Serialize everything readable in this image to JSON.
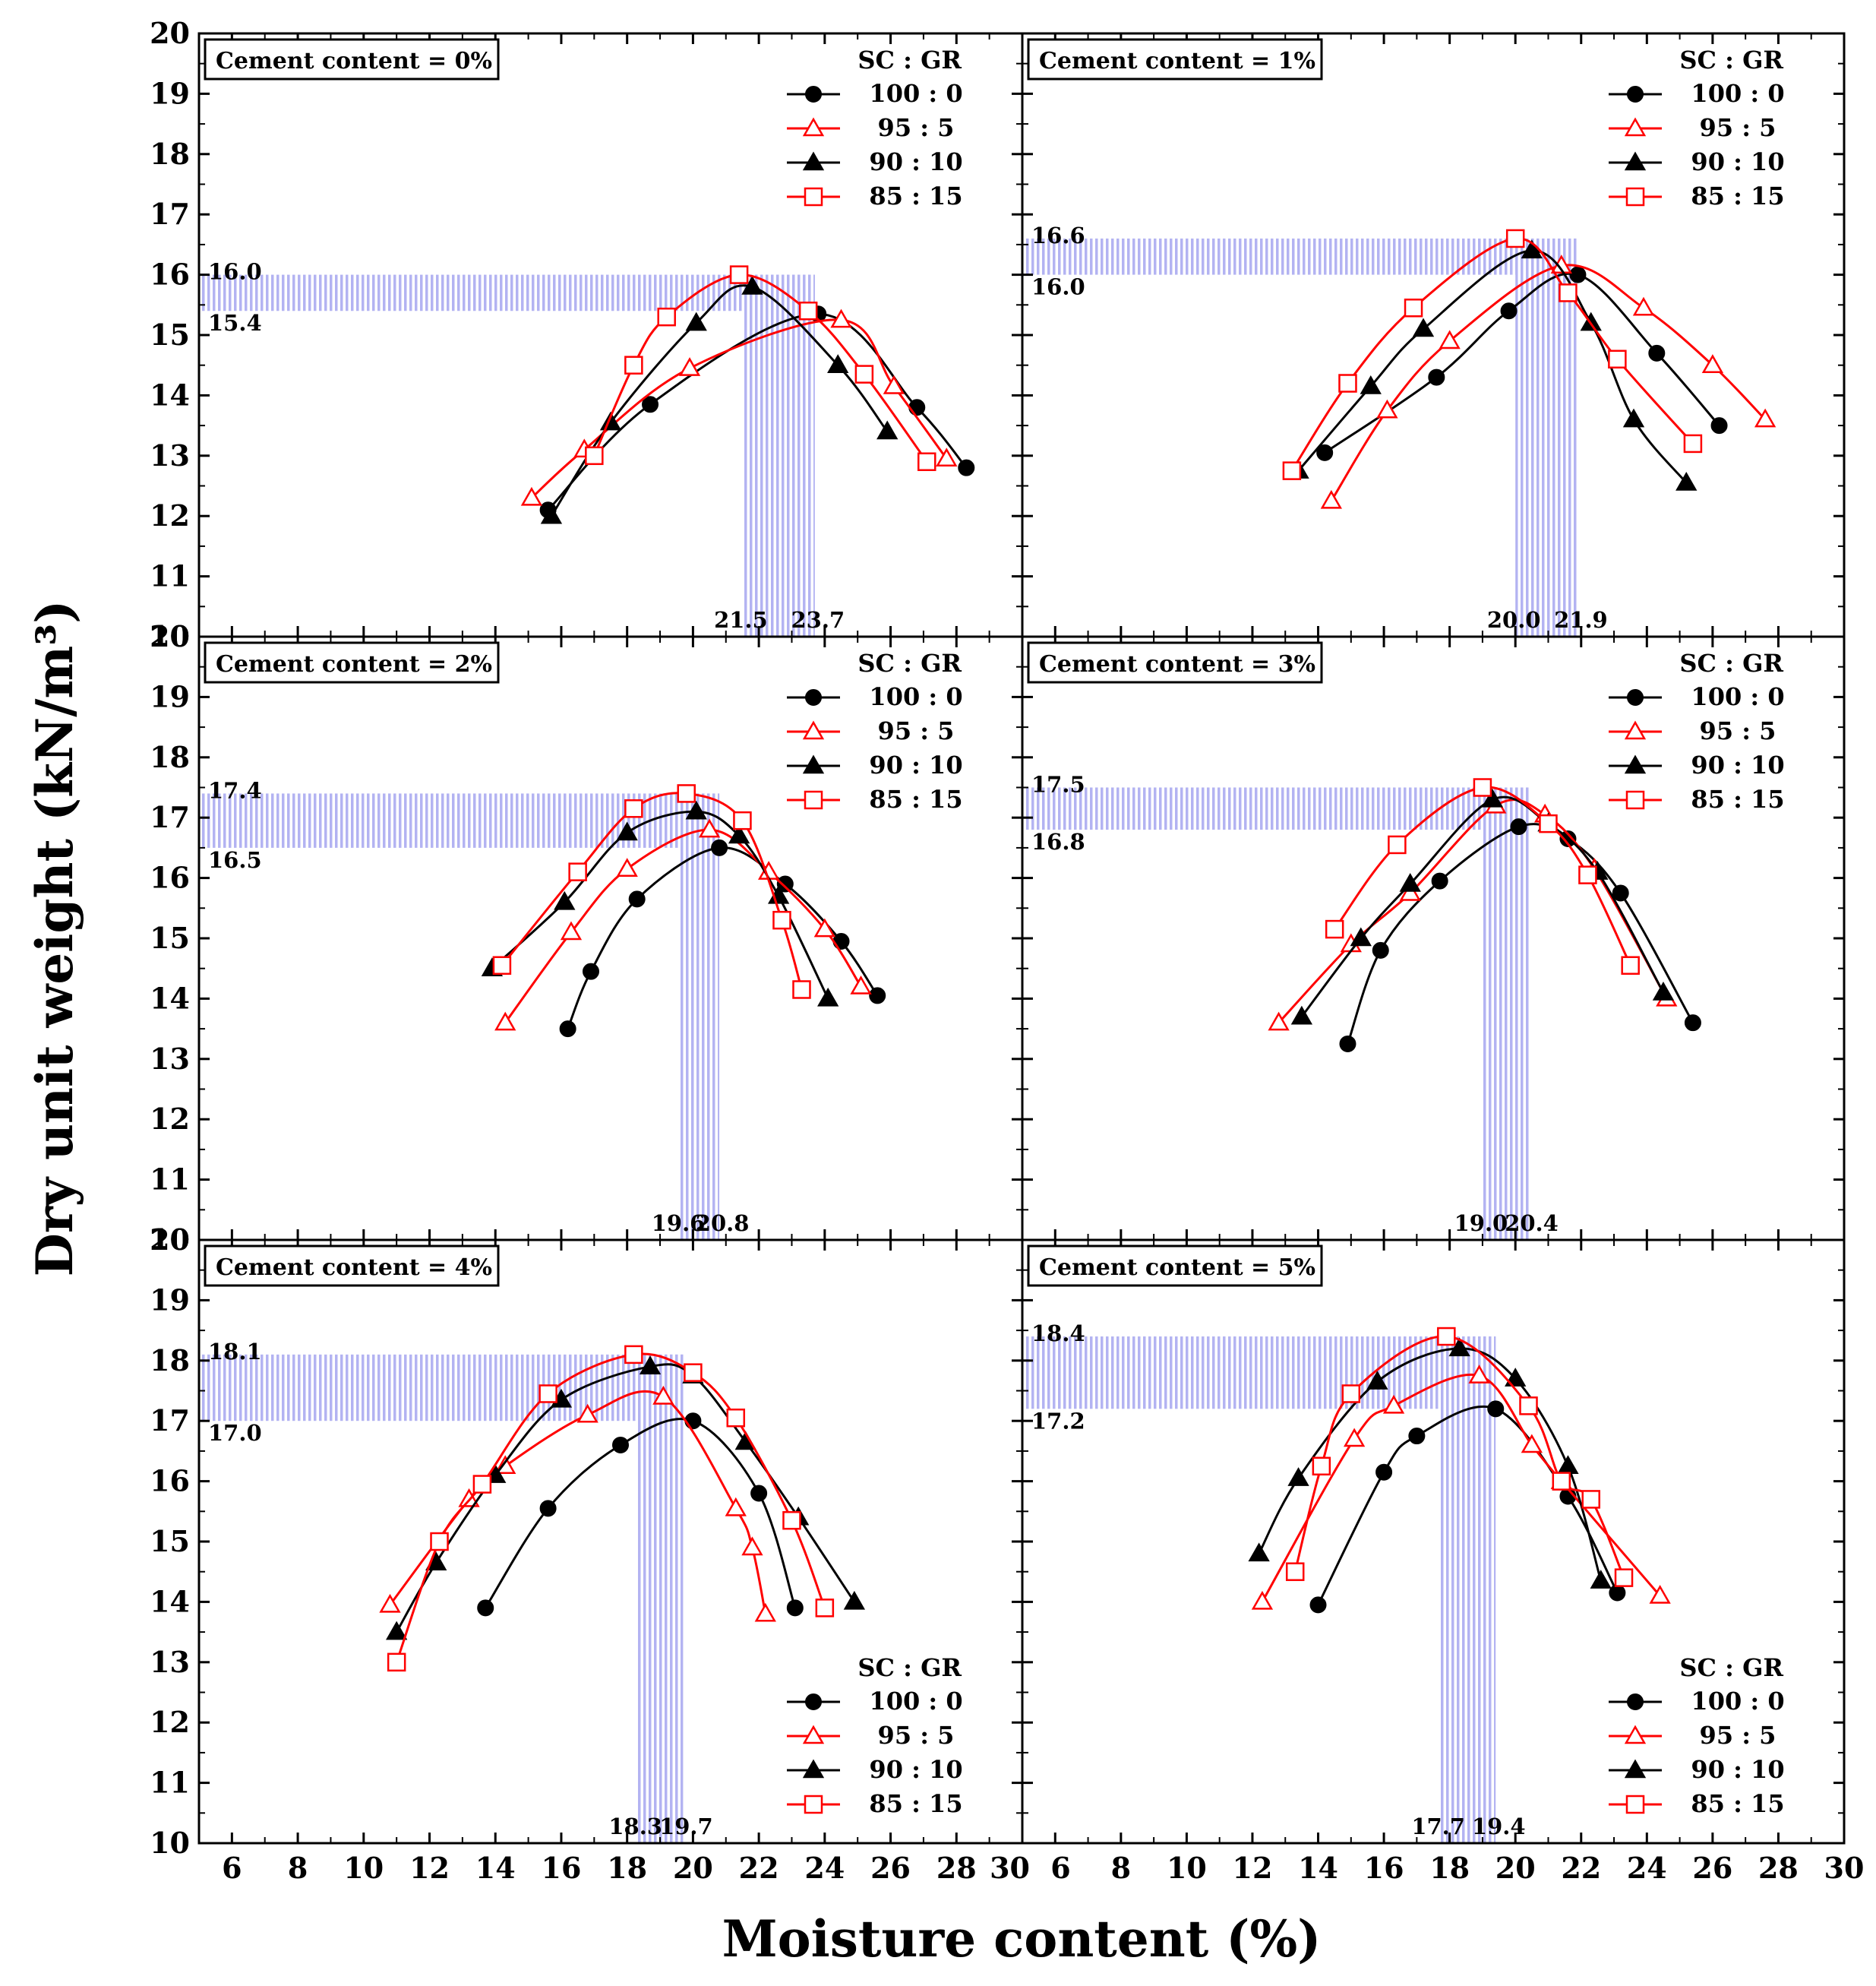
{
  "figure": {
    "xlabel": "Moisture content (%)",
    "ylabel": "Dry unit weight (kN/m³)",
    "colors": {
      "black": "#000000",
      "red": "#ff0000",
      "band": "#b3b3f2"
    }
  },
  "legend": {
    "title": "SC : GR",
    "entries": [
      {
        "label": "100 : 0",
        "color": "#000000",
        "marker": "filled-circle"
      },
      {
        "label": "95 : 5",
        "color": "#ff0000",
        "marker": "open-triangle"
      },
      {
        "label": "90 : 10",
        "color": "#000000",
        "marker": "filled-triangle"
      },
      {
        "label": "85 : 15",
        "color": "#ff0000",
        "marker": "open-square"
      }
    ]
  },
  "chart_data": [
    {
      "type": "line",
      "title": "Cement content = 0%",
      "xlim": [
        5,
        30
      ],
      "ylim": [
        10,
        20
      ],
      "x_ticks": [
        "6",
        "8",
        "10",
        "12",
        "14",
        "16",
        "18",
        "20",
        "22",
        "24",
        "26",
        "28",
        "30"
      ],
      "y_ticks": [
        "10",
        "11",
        "12",
        "13",
        "14",
        "15",
        "16",
        "17",
        "18",
        "19",
        "20"
      ],
      "legend_position": "top-right",
      "annotations": {
        "y_band": [
          15.4,
          16.0
        ],
        "y_band_labels": [
          "16.0",
          "15.4"
        ],
        "x_band": [
          21.5,
          23.7
        ],
        "x_band_labels": [
          "21.5",
          "23.7"
        ]
      },
      "series": [
        {
          "name": "100 : 0",
          "x": [
            15.6,
            18.7,
            23.8,
            26.8,
            28.3
          ],
          "y": [
            12.1,
            13.85,
            15.35,
            13.8,
            12.8
          ]
        },
        {
          "name": "95 : 5",
          "x": [
            15.1,
            16.7,
            19.9,
            24.5,
            26.1,
            27.7
          ],
          "y": [
            12.3,
            13.1,
            14.45,
            15.25,
            14.15,
            12.95
          ]
        },
        {
          "name": "90 : 10",
          "x": [
            15.7,
            17.5,
            20.1,
            21.8,
            24.4,
            25.9
          ],
          "y": [
            12.0,
            13.55,
            15.2,
            15.8,
            14.5,
            13.4
          ]
        },
        {
          "name": "85 : 15",
          "x": [
            17.0,
            18.2,
            19.2,
            21.4,
            23.5,
            25.2,
            27.1
          ],
          "y": [
            13.0,
            14.5,
            15.3,
            16.0,
            15.4,
            14.35,
            12.9
          ]
        }
      ]
    },
    {
      "type": "line",
      "title": "Cement content = 1%",
      "xlim": [
        5,
        30
      ],
      "ylim": [
        10,
        20
      ],
      "x_ticks": [
        "6",
        "8",
        "10",
        "12",
        "14",
        "16",
        "18",
        "20",
        "22",
        "24",
        "26",
        "28",
        "30"
      ],
      "y_ticks": [
        "10",
        "11",
        "12",
        "13",
        "14",
        "15",
        "16",
        "17",
        "18",
        "19",
        "20"
      ],
      "legend_position": "top-right",
      "annotations": {
        "y_band": [
          16.0,
          16.6
        ],
        "y_band_labels": [
          "16.6",
          "16.0"
        ],
        "x_band": [
          20.0,
          21.9
        ],
        "x_band_labels": [
          "20.0",
          "21.9"
        ]
      },
      "series": [
        {
          "name": "100 : 0",
          "x": [
            14.2,
            17.6,
            19.8,
            21.9,
            24.3,
            26.2
          ],
          "y": [
            13.05,
            14.3,
            15.4,
            16.0,
            14.7,
            13.5
          ]
        },
        {
          "name": "95 : 5",
          "x": [
            14.4,
            16.1,
            18.0,
            21.4,
            23.9,
            26.0,
            27.6
          ],
          "y": [
            12.25,
            13.75,
            14.9,
            16.15,
            15.45,
            14.5,
            13.6
          ]
        },
        {
          "name": "90 : 10",
          "x": [
            13.4,
            15.6,
            17.2,
            20.5,
            22.3,
            23.6,
            25.2
          ],
          "y": [
            12.75,
            14.15,
            15.1,
            16.4,
            15.2,
            13.6,
            12.55
          ]
        },
        {
          "name": "85 : 15",
          "x": [
            13.2,
            14.9,
            16.9,
            20.0,
            21.6,
            23.1,
            25.4
          ],
          "y": [
            12.75,
            14.2,
            15.45,
            16.6,
            15.7,
            14.6,
            13.2
          ]
        }
      ]
    },
    {
      "type": "line",
      "title": "Cement content = 2%",
      "xlim": [
        5,
        30
      ],
      "ylim": [
        10,
        20
      ],
      "x_ticks": [
        "6",
        "8",
        "10",
        "12",
        "14",
        "16",
        "18",
        "20",
        "22",
        "24",
        "26",
        "28",
        "30"
      ],
      "y_ticks": [
        "10",
        "11",
        "12",
        "13",
        "14",
        "15",
        "16",
        "17",
        "18",
        "19",
        "20"
      ],
      "legend_position": "top-right",
      "annotations": {
        "y_band": [
          16.5,
          17.4
        ],
        "y_band_labels": [
          "17.4",
          "16.5"
        ],
        "x_band": [
          19.6,
          20.8
        ],
        "x_band_labels": [
          "19.6",
          "20.8"
        ]
      },
      "series": [
        {
          "name": "100 : 0",
          "x": [
            16.2,
            16.9,
            18.3,
            20.8,
            22.8,
            24.5,
            25.6
          ],
          "y": [
            13.5,
            14.45,
            15.65,
            16.5,
            15.9,
            14.95,
            14.05
          ]
        },
        {
          "name": "95 : 5",
          "x": [
            14.3,
            16.3,
            18.0,
            20.5,
            22.3,
            24.0,
            25.1
          ],
          "y": [
            13.6,
            15.1,
            16.15,
            16.8,
            16.1,
            15.15,
            14.2
          ]
        },
        {
          "name": "90 : 10",
          "x": [
            13.9,
            16.1,
            18.0,
            20.1,
            21.4,
            22.6,
            24.1
          ],
          "y": [
            14.5,
            15.6,
            16.75,
            17.1,
            16.7,
            15.7,
            14.0
          ]
        },
        {
          "name": "85 : 15",
          "x": [
            14.2,
            16.5,
            18.2,
            19.8,
            21.5,
            22.7,
            23.3
          ],
          "y": [
            14.55,
            16.1,
            17.15,
            17.4,
            16.95,
            15.3,
            14.15
          ]
        }
      ]
    },
    {
      "type": "line",
      "title": "Cement content = 3%",
      "xlim": [
        5,
        30
      ],
      "ylim": [
        10,
        20
      ],
      "x_ticks": [
        "6",
        "8",
        "10",
        "12",
        "14",
        "16",
        "18",
        "20",
        "22",
        "24",
        "26",
        "28",
        "30"
      ],
      "y_ticks": [
        "10",
        "11",
        "12",
        "13",
        "14",
        "15",
        "16",
        "17",
        "18",
        "19",
        "20"
      ],
      "legend_position": "top-right",
      "annotations": {
        "y_band": [
          16.8,
          17.5
        ],
        "y_band_labels": [
          "17.5",
          "16.8"
        ],
        "x_band": [
          19.0,
          20.4
        ],
        "x_band_labels": [
          "19.0",
          "20.4"
        ]
      },
      "series": [
        {
          "name": "100 : 0",
          "x": [
            14.9,
            15.9,
            17.7,
            20.1,
            21.6,
            23.2,
            25.4
          ],
          "y": [
            13.25,
            14.8,
            15.95,
            16.85,
            16.65,
            15.75,
            13.6
          ]
        },
        {
          "name": "95 : 5",
          "x": [
            12.8,
            15.0,
            16.8,
            19.4,
            20.9,
            22.4,
            24.6
          ],
          "y": [
            13.6,
            14.9,
            15.75,
            17.2,
            17.05,
            16.15,
            14.0
          ]
        },
        {
          "name": "90 : 10",
          "x": [
            13.5,
            15.3,
            16.8,
            19.3,
            21.0,
            22.5,
            24.5
          ],
          "y": [
            13.7,
            15.0,
            15.9,
            17.3,
            16.9,
            16.1,
            14.1
          ]
        },
        {
          "name": "85 : 15",
          "x": [
            14.5,
            16.4,
            19.0,
            21.0,
            22.2,
            23.5
          ],
          "y": [
            15.15,
            16.55,
            17.5,
            16.9,
            16.05,
            14.55
          ]
        }
      ]
    },
    {
      "type": "line",
      "title": "Cement content = 4%",
      "xlim": [
        5,
        30
      ],
      "ylim": [
        10,
        20
      ],
      "x_ticks": [
        "6",
        "8",
        "10",
        "12",
        "14",
        "16",
        "18",
        "20",
        "22",
        "24",
        "26",
        "28",
        "30"
      ],
      "y_ticks": [
        "10",
        "11",
        "12",
        "13",
        "14",
        "15",
        "16",
        "17",
        "18",
        "19",
        "20"
      ],
      "legend_position": "bottom-right",
      "annotations": {
        "y_band": [
          17.0,
          18.1
        ],
        "y_band_labels": [
          "18.1",
          "17.0"
        ],
        "x_band": [
          18.3,
          19.7
        ],
        "x_band_labels": [
          "18.3",
          "19.7"
        ]
      },
      "series": [
        {
          "name": "100 : 0",
          "x": [
            13.7,
            15.6,
            17.8,
            20.0,
            22.0,
            23.1
          ],
          "y": [
            13.9,
            15.55,
            16.6,
            17.0,
            15.8,
            13.9
          ]
        },
        {
          "name": "95 : 5",
          "x": [
            10.8,
            13.2,
            14.3,
            16.8,
            19.1,
            21.3,
            21.8,
            22.2
          ],
          "y": [
            13.95,
            15.7,
            16.25,
            17.1,
            17.4,
            15.55,
            14.9,
            13.8
          ]
        },
        {
          "name": "90 : 10",
          "x": [
            11.0,
            12.2,
            14.0,
            16.0,
            18.7,
            20.0,
            21.6,
            23.2,
            24.9
          ],
          "y": [
            13.5,
            14.65,
            16.1,
            17.35,
            17.9,
            17.75,
            16.65,
            15.4,
            14.0
          ]
        },
        {
          "name": "85 : 15",
          "x": [
            11.0,
            12.3,
            13.6,
            15.6,
            18.2,
            20.0,
            21.3,
            23.0,
            24.0
          ],
          "y": [
            13.0,
            15.0,
            15.95,
            17.45,
            18.1,
            17.8,
            17.05,
            15.35,
            13.9
          ]
        }
      ]
    },
    {
      "type": "line",
      "title": "Cement content = 5%",
      "xlim": [
        5,
        30
      ],
      "ylim": [
        10,
        20
      ],
      "x_ticks": [
        "6",
        "8",
        "10",
        "12",
        "14",
        "16",
        "18",
        "20",
        "22",
        "24",
        "26",
        "28",
        "30"
      ],
      "y_ticks": [
        "10",
        "11",
        "12",
        "13",
        "14",
        "15",
        "16",
        "17",
        "18",
        "19",
        "20"
      ],
      "legend_position": "bottom-right",
      "annotations": {
        "y_band": [
          17.2,
          18.4
        ],
        "y_band_labels": [
          "18.4",
          "17.2"
        ],
        "x_band": [
          17.7,
          19.4
        ],
        "x_band_labels": [
          "17.7",
          "19.4"
        ]
      },
      "series": [
        {
          "name": "100 : 0",
          "x": [
            14.0,
            16.0,
            17.0,
            19.4,
            21.6,
            23.1
          ],
          "y": [
            13.95,
            16.15,
            16.75,
            17.2,
            15.75,
            14.15
          ]
        },
        {
          "name": "95 : 5",
          "x": [
            12.3,
            15.1,
            16.3,
            18.9,
            20.5,
            21.4,
            24.4
          ],
          "y": [
            14.0,
            16.7,
            17.25,
            17.75,
            16.6,
            16.0,
            14.1
          ]
        },
        {
          "name": "90 : 10",
          "x": [
            12.2,
            13.4,
            15.8,
            18.3,
            20.0,
            21.6,
            22.6
          ],
          "y": [
            14.8,
            16.05,
            17.65,
            18.2,
            17.7,
            16.25,
            14.35
          ]
        },
        {
          "name": "85 : 15",
          "x": [
            13.3,
            14.1,
            15.0,
            17.9,
            20.4,
            21.4,
            22.3,
            23.3
          ],
          "y": [
            14.5,
            16.25,
            17.45,
            18.4,
            17.25,
            16.0,
            15.7,
            14.4
          ]
        }
      ]
    }
  ]
}
